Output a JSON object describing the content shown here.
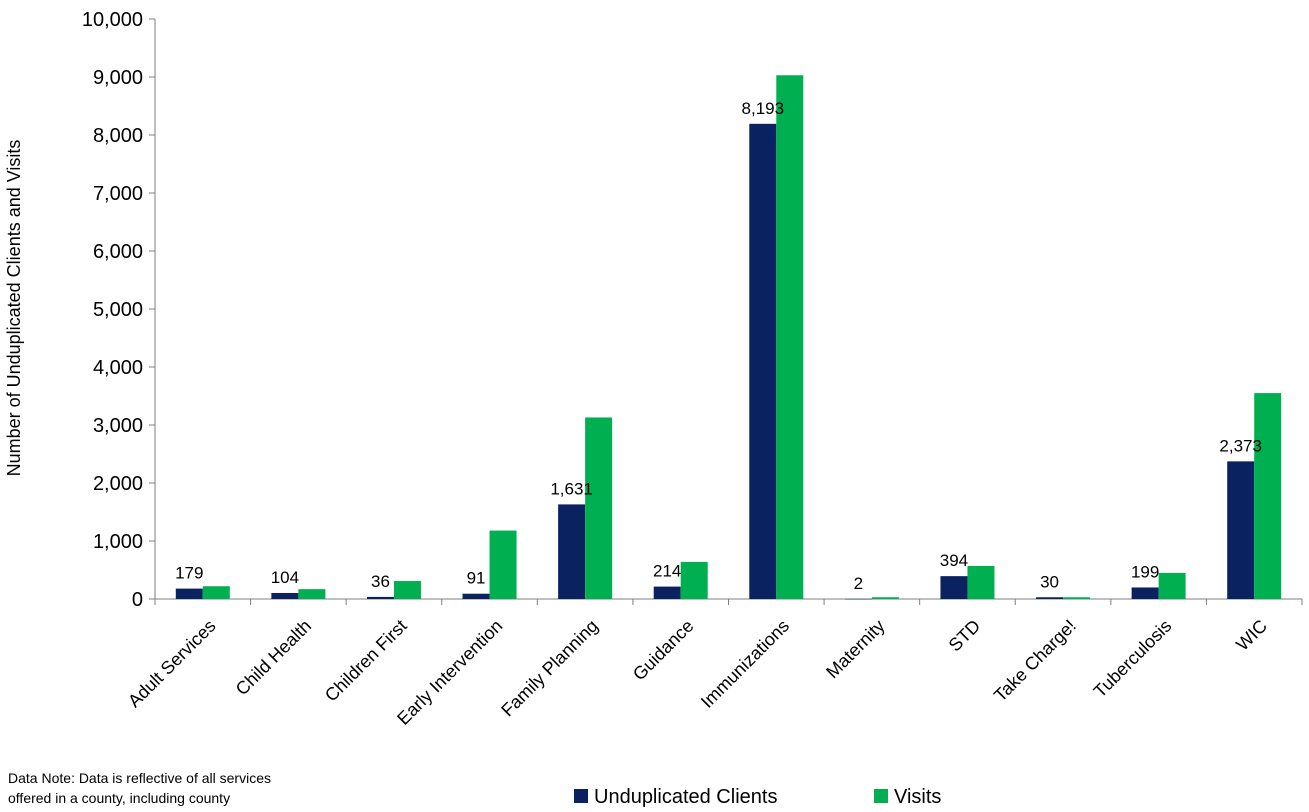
{
  "chart_data": {
    "type": "bar",
    "categories": [
      "Adult Services",
      "Child Health",
      "Children First",
      "Early Intervention",
      "Family Planning",
      "Guidance",
      "Immunizations",
      "Maternity",
      "STD",
      "Take Charge!",
      "Tuberculosis",
      "WIC"
    ],
    "series": [
      {
        "name": "Unduplicated Clients",
        "color": "#0b2260",
        "values": [
          179,
          104,
          36,
          91,
          1631,
          214,
          8193,
          2,
          394,
          30,
          199,
          2373
        ],
        "labels": [
          "179",
          "104",
          "36",
          "91",
          "1,631",
          "214",
          "8,193",
          "2",
          "394",
          "30",
          "199",
          "2,373"
        ]
      },
      {
        "name": "Visits",
        "color": "#00b050",
        "values": [
          220,
          170,
          310,
          1180,
          3130,
          640,
          9030,
          30,
          570,
          30,
          450,
          3550
        ]
      }
    ],
    "xlabel": "",
    "ylabel": "Number of Unduplicated Clients and Visits",
    "ylim": [
      0,
      10000
    ],
    "yticks": [
      "0",
      "1,000",
      "2,000",
      "3,000",
      "4,000",
      "5,000",
      "6,000",
      "7,000",
      "8,000",
      "9,000",
      "10,000"
    ],
    "grid": false,
    "legend": "bottom"
  },
  "note": "Data Note: Data is reflective of all services\noffered in a county, including county"
}
